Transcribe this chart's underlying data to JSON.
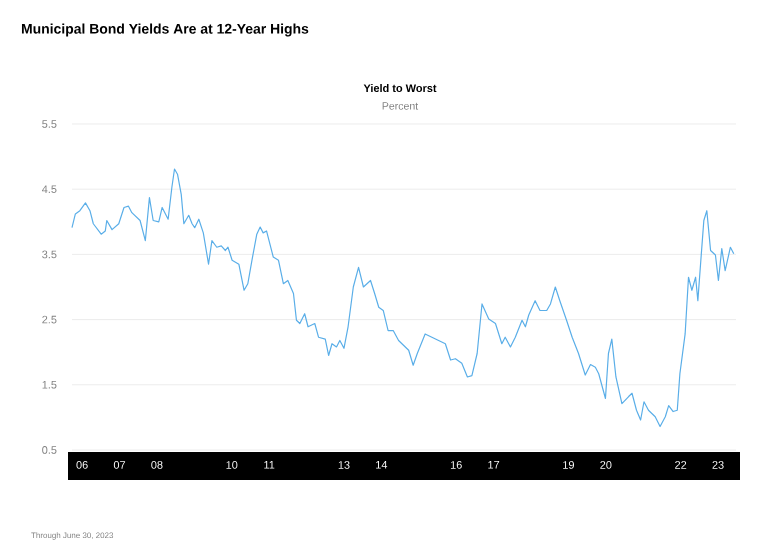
{
  "chart_data": {
    "type": "line",
    "title": "Municipal Bond Yields Are at 12-Year Highs",
    "subtitle": "Yield to Worst",
    "ylabel": "Percent",
    "annotations": [
      "Through June 30, 2023"
    ],
    "x": [
      2005.73,
      2005.82,
      2005.94,
      2006.09,
      2006.21,
      2006.3,
      2006.51,
      2006.62,
      2006.66,
      2006.8,
      2006.98,
      2007.12,
      2007.24,
      2007.33,
      2007.55,
      2007.69,
      2007.8,
      2007.9,
      2008.05,
      2008.14,
      2008.3,
      2008.4,
      2008.47,
      2008.55,
      2008.65,
      2008.72,
      2008.85,
      2008.94,
      2009.01,
      2009.12,
      2009.24,
      2009.38,
      2009.47,
      2009.6,
      2009.72,
      2009.83,
      2009.9,
      2010.01,
      2010.19,
      2010.33,
      2010.43,
      2010.54,
      2010.67,
      2010.76,
      2010.84,
      2010.93,
      2011.11,
      2011.25,
      2011.38,
      2011.5,
      2011.65,
      2011.73,
      2011.82,
      2011.95,
      2012.04,
      2012.22,
      2012.32,
      2012.5,
      2012.59,
      2012.68,
      2012.8,
      2012.89,
      2013.0,
      2013.11,
      2013.25,
      2013.39,
      2013.52,
      2013.71,
      2013.82,
      2013.93,
      2014.05,
      2014.18,
      2014.32,
      2014.46,
      2014.55,
      2014.73,
      2014.85,
      2014.96,
      2015.17,
      2015.35,
      2015.53,
      2015.71,
      2015.85,
      2015.98,
      2016.15,
      2016.3,
      2016.42,
      2016.56,
      2016.69,
      2016.87,
      2017.05,
      2017.22,
      2017.31,
      2017.45,
      2017.58,
      2017.76,
      2017.85,
      2017.94,
      2018.11,
      2018.24,
      2018.42,
      2018.52,
      2018.65,
      2018.77,
      2018.95,
      2019.1,
      2019.27,
      2019.45,
      2019.59,
      2019.72,
      2019.81,
      2019.99,
      2020.07,
      2020.16,
      2020.27,
      2020.43,
      2020.61,
      2020.7,
      2020.82,
      2020.93,
      2021.02,
      2021.14,
      2021.32,
      2021.45,
      2021.59,
      2021.68,
      2021.8,
      2021.91,
      2021.98,
      2022.12,
      2022.21,
      2022.3,
      2022.4,
      2022.46,
      2022.54,
      2022.62,
      2022.7,
      2022.8,
      2022.93,
      2023.01,
      2023.1,
      2023.19,
      2023.33,
      2023.42
    ],
    "series": [
      {
        "color": "#5aaee8",
        "values": [
          3.91,
          4.12,
          4.17,
          4.29,
          4.17,
          3.97,
          3.81,
          3.86,
          4.02,
          3.88,
          3.97,
          4.22,
          4.24,
          4.14,
          4.02,
          3.71,
          4.37,
          4.02,
          4.0,
          4.22,
          4.04,
          4.53,
          4.81,
          4.73,
          4.42,
          3.97,
          4.1,
          3.97,
          3.91,
          4.04,
          3.83,
          3.35,
          3.71,
          3.61,
          3.63,
          3.56,
          3.61,
          3.41,
          3.35,
          2.95,
          3.05,
          3.41,
          3.81,
          3.92,
          3.83,
          3.86,
          3.46,
          3.41,
          3.05,
          3.1,
          2.9,
          2.49,
          2.44,
          2.59,
          2.39,
          2.44,
          2.23,
          2.2,
          1.95,
          2.13,
          2.08,
          2.18,
          2.06,
          2.39,
          3.0,
          3.3,
          3.0,
          3.1,
          2.9,
          2.69,
          2.64,
          2.33,
          2.33,
          2.18,
          2.13,
          2.03,
          1.8,
          1.98,
          2.28,
          2.23,
          2.18,
          2.13,
          1.88,
          1.9,
          1.83,
          1.62,
          1.64,
          1.98,
          2.74,
          2.51,
          2.44,
          2.13,
          2.23,
          2.08,
          2.23,
          2.49,
          2.39,
          2.57,
          2.79,
          2.64,
          2.64,
          2.74,
          3.0,
          2.79,
          2.49,
          2.23,
          1.98,
          1.65,
          1.81,
          1.77,
          1.67,
          1.29,
          1.98,
          2.2,
          1.62,
          1.21,
          1.32,
          1.37,
          1.11,
          0.96,
          1.24,
          1.11,
          1.01,
          0.86,
          1.01,
          1.18,
          1.09,
          1.11,
          1.67,
          2.28,
          3.15,
          2.95,
          3.15,
          2.79,
          3.41,
          4.02,
          4.17,
          3.56,
          3.49,
          3.1,
          3.59,
          3.25,
          3.61,
          3.51
        ]
      }
    ],
    "xlim": [
      2005.73,
      2023.48
    ],
    "ylim": [
      0.5,
      5.5
    ],
    "yticks": [
      0.5,
      1.5,
      2.5,
      3.5,
      4.5,
      5.5
    ],
    "xticks": [
      {
        "value": 2006,
        "label": "06"
      },
      {
        "value": 2007,
        "label": "07"
      },
      {
        "value": 2008,
        "label": "08"
      },
      {
        "value": 2010,
        "label": "10"
      },
      {
        "value": 2011,
        "label": "11"
      },
      {
        "value": 2013,
        "label": "13"
      },
      {
        "value": 2014,
        "label": "14"
      },
      {
        "value": 2016,
        "label": "16"
      },
      {
        "value": 2017,
        "label": "17"
      },
      {
        "value": 2019,
        "label": "19"
      },
      {
        "value": 2020,
        "label": "20"
      },
      {
        "value": 2022,
        "label": "22"
      },
      {
        "value": 2023,
        "label": "23"
      }
    ],
    "grid": "y",
    "line_style": "solid"
  }
}
